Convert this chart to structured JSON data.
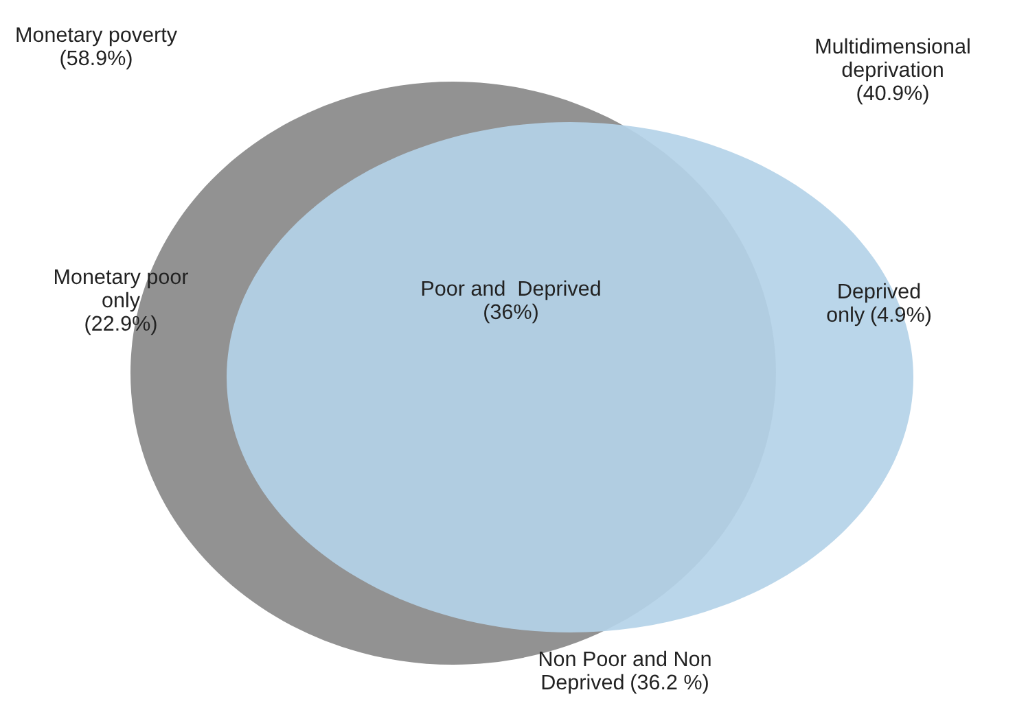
{
  "chart_data": {
    "type": "other",
    "categories": [
      "Monetary poverty",
      "Multidimensional deprivation",
      "Monetary poor only",
      "Poor and  Deprived",
      "Deprived only",
      "Non Poor and Non Deprived"
    ],
    "values": [
      58.9,
      40.9,
      22.9,
      36,
      4.9,
      36.2
    ],
    "value_labels": [
      "(58.9%)",
      "(40.9%)",
      "(22.9%)",
      "(36%)",
      "(4.9%)",
      "(36.2 %)"
    ],
    "colors": [
      "#8c8c8c",
      "#b4d2e8",
      null,
      null,
      null,
      null
    ]
  }
}
